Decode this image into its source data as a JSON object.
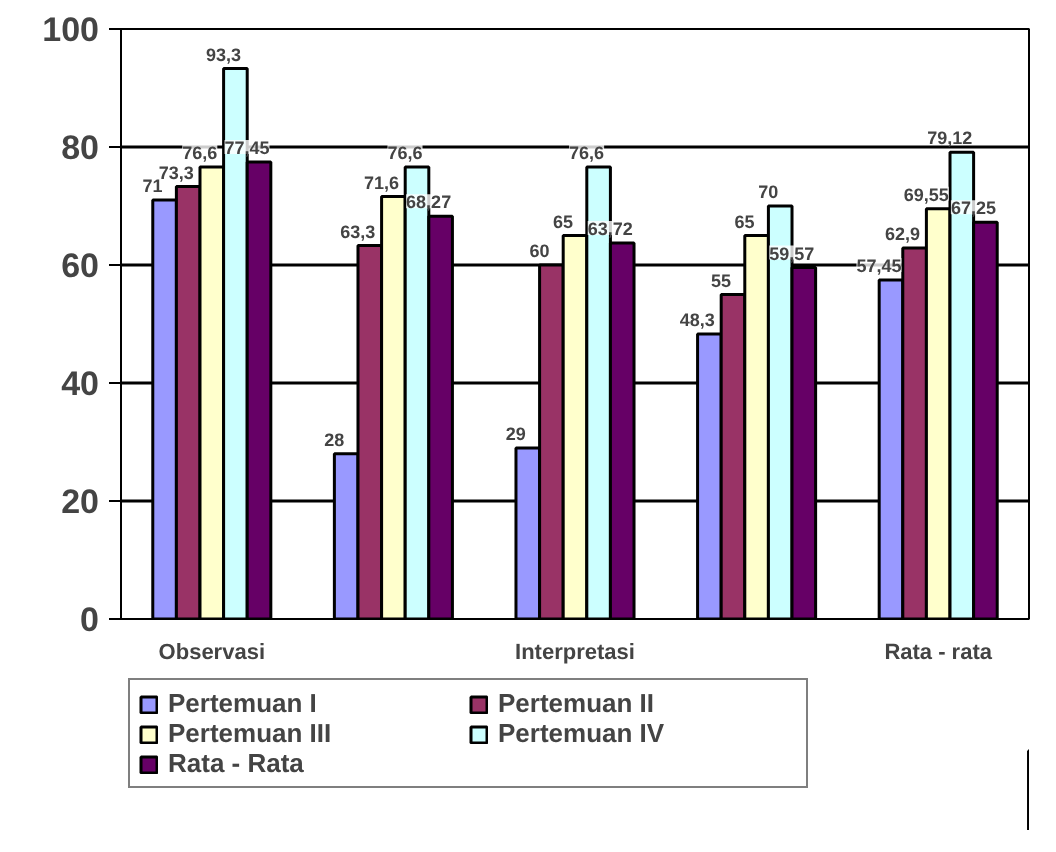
{
  "chart_data": {
    "type": "bar",
    "categories": [
      "Observasi",
      null,
      "Interpretasi",
      null,
      "Rata - rata"
    ],
    "series": [
      {
        "name": "Pertemuan I",
        "color": "#9999ff",
        "values": [
          71,
          28,
          29,
          48.3,
          57.45
        ],
        "value_labels": [
          "71",
          "28",
          "29",
          "48,3",
          "57,45"
        ]
      },
      {
        "name": "Pertemuan II",
        "color": "#993366",
        "values": [
          73.3,
          63.3,
          60,
          55,
          62.9
        ],
        "value_labels": [
          "73,3",
          "63,3",
          "60",
          "55",
          "62,9"
        ]
      },
      {
        "name": "Pertemuan III",
        "color": "#ffffcc",
        "values": [
          76.6,
          71.6,
          65,
          65,
          69.55
        ],
        "value_labels": [
          "76,6",
          "71,6",
          "65",
          "65",
          "69,55"
        ]
      },
      {
        "name": "Pertemuan IV",
        "color": "#ccffff",
        "values": [
          93.3,
          76.6,
          76.6,
          70,
          79.12
        ],
        "value_labels": [
          "93,3",
          "76,6",
          "76,6",
          "70",
          "79,12"
        ]
      },
      {
        "name": "Rata - Rata",
        "color": "#660066",
        "values": [
          77.45,
          68.27,
          63.72,
          59.57,
          67.25
        ],
        "value_labels": [
          "77,45",
          "68,27",
          "63,72",
          "59,57",
          "67,25"
        ]
      }
    ],
    "ylim": [
      0,
      100
    ],
    "yticks": [
      0,
      20,
      40,
      60,
      80,
      100
    ],
    "grid": "y",
    "legend": "bottom"
  }
}
